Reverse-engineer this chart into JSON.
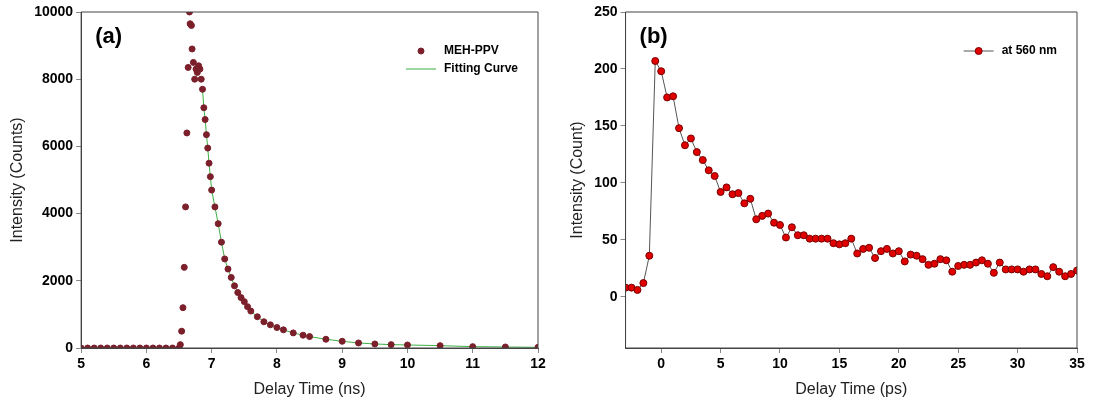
{
  "chart_data": [
    {
      "type": "scatter",
      "xlabel": "Delay Time (ns)",
      "ylabel": "Intensity (Counts)",
      "annotations": [
        "(a)"
      ],
      "xlim": [
        5,
        12
      ],
      "xticks": [
        5,
        6,
        7,
        8,
        9,
        10,
        11,
        12
      ],
      "ylim": [
        0,
        10000
      ],
      "yticks": [
        0,
        2000,
        4000,
        6000,
        8000,
        10000
      ],
      "grid": false,
      "legend": "top right",
      "series": [
        {
          "name": "MEH-PPV",
          "marker": "circle",
          "color": "#7b1f2b",
          "x": [
            5.0,
            5.1,
            5.2,
            5.3,
            5.4,
            5.5,
            5.6,
            5.7,
            5.8,
            5.9,
            6.0,
            6.1,
            6.2,
            6.3,
            6.4,
            6.5,
            6.52,
            6.54,
            6.56,
            6.58,
            6.6,
            6.62,
            6.64,
            6.66,
            6.67,
            6.69,
            6.7,
            6.72,
            6.74,
            6.76,
            6.78,
            6.8,
            6.82,
            6.84,
            6.86,
            6.88,
            6.9,
            6.92,
            6.94,
            6.96,
            6.98,
            7.0,
            7.05,
            7.1,
            7.15,
            7.2,
            7.25,
            7.3,
            7.35,
            7.4,
            7.45,
            7.5,
            7.55,
            7.6,
            7.7,
            7.8,
            7.9,
            8.0,
            8.1,
            8.25,
            8.4,
            8.5,
            8.75,
            9.0,
            9.25,
            9.5,
            9.75,
            10.0,
            10.5,
            11.0,
            11.5,
            12.0
          ],
          "values": [
            0,
            0,
            0,
            0,
            0,
            0,
            0,
            0,
            0,
            0,
            0,
            0,
            0,
            0,
            0,
            0,
            100,
            500,
            1200,
            2400,
            4200,
            6400,
            8350,
            10000,
            9650,
            9600,
            8900,
            8500,
            8000,
            8300,
            8200,
            8400,
            8300,
            8000,
            7700,
            7150,
            6800,
            6350,
            5950,
            5500,
            5100,
            4700,
            4200,
            3700,
            3150,
            2650,
            2350,
            2100,
            1850,
            1650,
            1500,
            1380,
            1230,
            1100,
            930,
            780,
            690,
            610,
            540,
            450,
            380,
            340,
            260,
            200,
            150,
            120,
            100,
            90,
            70,
            40,
            30,
            20
          ]
        },
        {
          "name": "Fitting Curve",
          "type": "line",
          "marker": "none",
          "color": "#3cb043",
          "x": [
            6.86,
            6.88,
            6.9,
            6.92,
            6.94,
            6.96,
            6.98,
            7.0,
            7.05,
            7.1,
            7.15,
            7.2,
            7.25,
            7.3,
            7.35,
            7.4,
            7.45,
            7.5,
            7.55,
            7.6,
            7.7,
            7.8,
            7.9,
            8.0,
            8.1,
            8.25,
            8.4,
            8.5,
            8.75,
            9.0,
            9.25,
            9.5,
            9.75,
            10.0,
            10.5,
            11.0,
            11.5,
            12.0
          ],
          "values": [
            7700,
            7150,
            6800,
            6350,
            5950,
            5500,
            5100,
            4700,
            4200,
            3700,
            3150,
            2650,
            2350,
            2100,
            1850,
            1650,
            1500,
            1380,
            1230,
            1100,
            930,
            780,
            690,
            610,
            540,
            450,
            380,
            340,
            260,
            200,
            150,
            120,
            100,
            90,
            70,
            40,
            30,
            20
          ]
        }
      ]
    },
    {
      "type": "line",
      "xlabel": "Delay Time (ps)",
      "ylabel": "Intensity (Count)",
      "annotations": [
        "(b)"
      ],
      "xlim": [
        -3,
        35
      ],
      "xticks": [
        0,
        5,
        10,
        15,
        20,
        25,
        30,
        35
      ],
      "ylim": [
        -45,
        250
      ],
      "yticks": [
        0,
        50,
        100,
        150,
        200,
        250
      ],
      "grid": false,
      "legend": "top right",
      "marker": "circle",
      "line_style": "solid",
      "x": [
        -3,
        -2.5,
        -2,
        -1.5,
        -1,
        -0.5,
        0,
        0.5,
        1,
        1.5,
        2,
        2.5,
        3,
        3.5,
        4,
        4.5,
        5,
        5.5,
        6,
        6.5,
        7,
        7.5,
        8,
        8.5,
        9,
        9.5,
        10,
        10.5,
        11,
        11.5,
        12,
        12.5,
        13,
        13.5,
        14,
        14.5,
        15,
        15.5,
        16,
        16.5,
        17,
        17.5,
        18,
        18.5,
        19,
        19.5,
        20,
        20.5,
        21,
        21.5,
        22,
        22.5,
        23,
        23.5,
        24,
        24.5,
        25,
        25.5,
        26,
        26.5,
        27,
        27.5,
        28,
        28.5,
        29,
        29.5,
        30,
        30.5,
        31,
        31.5,
        32,
        32.5,
        33,
        33.5,
        34,
        34.5,
        35
      ],
      "series": [
        {
          "name": "at 560 nm",
          "color": "#e00000",
          "values": [
            8,
            8,
            6,
            12,
            36,
            207,
            198,
            175,
            176,
            148,
            133,
            139,
            127,
            120,
            111,
            106,
            92,
            96,
            90,
            91,
            82,
            86,
            68,
            71,
            73,
            65,
            63,
            52,
            61,
            54,
            54,
            51,
            51,
            51,
            51,
            47,
            46,
            47,
            51,
            38,
            42,
            43,
            34,
            40,
            42,
            38,
            40,
            31,
            37,
            36,
            33,
            28,
            29,
            33,
            32,
            22,
            27,
            28,
            28,
            30,
            32,
            29,
            21,
            30,
            24,
            24,
            24,
            22,
            24,
            24,
            20,
            18,
            26,
            22,
            18,
            20,
            23
          ]
        }
      ]
    }
  ]
}
